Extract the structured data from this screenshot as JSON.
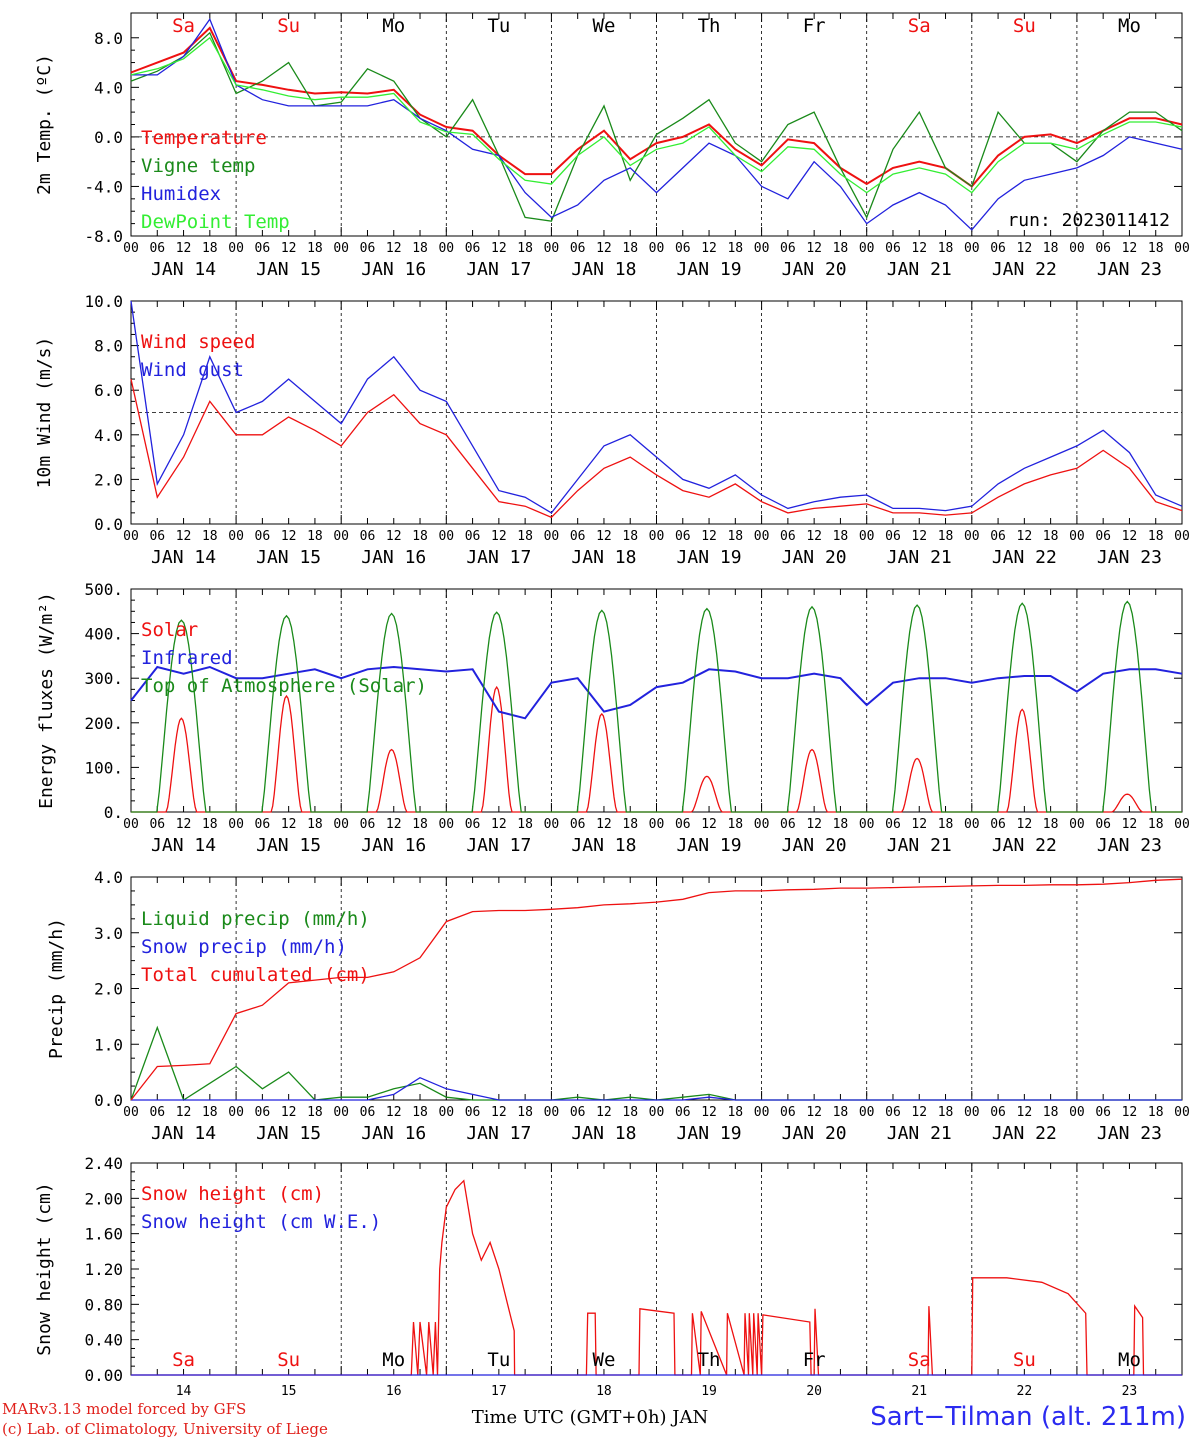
{
  "chart_data": [
    {
      "type": "line",
      "ylabel": "2m Temp. (ºC)",
      "ylim": [
        -8,
        10
      ],
      "yticks": [
        "-8.0",
        "-4.0",
        "0.0",
        "4.0",
        "8.0"
      ],
      "ytick_values": [
        -8,
        -4,
        0,
        4,
        8
      ],
      "ref_line": 0,
      "annotation": "run: 2023011412",
      "x": [
        0,
        6,
        12,
        18,
        24,
        30,
        36,
        42,
        48,
        54,
        60,
        66,
        72,
        78,
        84,
        90,
        96,
        102,
        108,
        114,
        120,
        126,
        132,
        138,
        144,
        150,
        156,
        162,
        168,
        174,
        180,
        186,
        192,
        198,
        204,
        210,
        216,
        222,
        228,
        234,
        240
      ],
      "series": [
        {
          "name": "Temperature",
          "color": "#ee1111",
          "values": [
            5.2,
            6.0,
            6.8,
            8.8,
            4.5,
            4.2,
            3.8,
            3.5,
            3.6,
            3.5,
            3.8,
            1.8,
            0.8,
            0.5,
            -1.5,
            -3.0,
            -3.0,
            -1.0,
            0.5,
            -1.8,
            -0.5,
            0.0,
            1.0,
            -1.0,
            -2.3,
            -0.2,
            -0.5,
            -2.5,
            -3.8,
            -2.5,
            -2.0,
            -2.5,
            -4.0,
            -1.5,
            0.0,
            0.2,
            -0.5,
            0.5,
            1.5,
            1.5,
            1.0
          ]
        },
        {
          "name": "Vigne temp",
          "color": "#1a8a1a",
          "values": [
            4.5,
            5.3,
            6.5,
            8.4,
            3.5,
            4.5,
            6.0,
            2.5,
            2.8,
            5.5,
            4.5,
            1.5,
            0.0,
            3.0,
            -1.5,
            -6.5,
            -6.8,
            -1.5,
            2.5,
            -3.5,
            0.2,
            1.5,
            3.0,
            -0.5,
            -2.0,
            1.0,
            2.0,
            -2.5,
            -6.5,
            -1.0,
            2.0,
            -2.5,
            -4.0,
            2.0,
            -0.5,
            -0.5,
            -2.0,
            0.5,
            2.0,
            2.0,
            0.5
          ]
        },
        {
          "name": "Humidex",
          "color": "#2222dd",
          "values": [
            5.0,
            5.0,
            6.5,
            9.5,
            4.2,
            3.0,
            2.5,
            2.5,
            2.5,
            2.5,
            3.0,
            1.5,
            0.5,
            -1.0,
            -1.5,
            -4.5,
            -6.5,
            -5.5,
            -3.5,
            -2.5,
            -4.5,
            -2.5,
            -0.5,
            -1.5,
            -4.0,
            -5.0,
            -2.0,
            -4.0,
            -7.0,
            -5.5,
            -4.5,
            -5.5,
            -7.5,
            -5.0,
            -3.5,
            -3.0,
            -2.5,
            -1.5,
            0.0,
            -0.5,
            -1.0
          ]
        },
        {
          "name": "DewPoint Temp",
          "color": "#33ee33",
          "values": [
            5.0,
            5.5,
            6.3,
            8.0,
            4.2,
            3.8,
            3.3,
            3.0,
            3.2,
            3.2,
            3.5,
            1.2,
            0.4,
            0.2,
            -1.8,
            -3.5,
            -3.8,
            -1.5,
            0.0,
            -2.3,
            -1.0,
            -0.5,
            0.8,
            -1.5,
            -2.8,
            -0.8,
            -1.0,
            -3.0,
            -4.5,
            -3.0,
            -2.5,
            -3.0,
            -4.5,
            -2.0,
            -0.5,
            -0.5,
            -1.0,
            0.2,
            1.2,
            1.2,
            0.8
          ]
        }
      ]
    },
    {
      "type": "line",
      "ylabel": "10m Wind (m/s)",
      "ylim": [
        0,
        10
      ],
      "yticks": [
        "0.0",
        "2.0",
        "4.0",
        "6.0",
        "8.0",
        "10.0"
      ],
      "ytick_values": [
        0,
        2,
        4,
        6,
        8,
        10
      ],
      "ref_line": 5,
      "x": [
        0,
        6,
        12,
        18,
        24,
        30,
        36,
        42,
        48,
        54,
        60,
        66,
        72,
        78,
        84,
        90,
        96,
        102,
        108,
        114,
        120,
        126,
        132,
        138,
        144,
        150,
        156,
        162,
        168,
        174,
        180,
        186,
        192,
        198,
        204,
        210,
        216,
        222,
        228,
        234,
        240
      ],
      "series": [
        {
          "name": "Wind speed",
          "color": "#ee1111",
          "values": [
            6.5,
            1.2,
            3.0,
            5.5,
            4.0,
            4.0,
            4.8,
            4.2,
            3.5,
            5.0,
            5.8,
            4.5,
            4.0,
            2.5,
            1.0,
            0.8,
            0.3,
            1.5,
            2.5,
            3.0,
            2.2,
            1.5,
            1.2,
            1.8,
            1.0,
            0.5,
            0.7,
            0.8,
            0.9,
            0.5,
            0.5,
            0.4,
            0.5,
            1.2,
            1.8,
            2.2,
            2.5,
            3.3,
            2.5,
            1.0,
            0.6
          ]
        },
        {
          "name": "Wind gust",
          "color": "#2222dd",
          "values": [
            10.0,
            1.8,
            4.0,
            7.5,
            5.0,
            5.5,
            6.5,
            5.5,
            4.5,
            6.5,
            7.5,
            6.0,
            5.5,
            3.5,
            1.5,
            1.2,
            0.5,
            2.0,
            3.5,
            4.0,
            3.0,
            2.0,
            1.6,
            2.2,
            1.3,
            0.7,
            1.0,
            1.2,
            1.3,
            0.7,
            0.7,
            0.6,
            0.8,
            1.8,
            2.5,
            3.0,
            3.5,
            4.2,
            3.2,
            1.3,
            0.8
          ]
        }
      ]
    },
    {
      "type": "line",
      "ylabel": "Energy fluxes (W/m²)",
      "ylim": [
        0,
        500
      ],
      "yticks": [
        "0.",
        "100.",
        "200.",
        "300.",
        "400.",
        "500."
      ],
      "ytick_values": [
        0,
        100,
        200,
        300,
        400,
        500
      ],
      "diurnal_peak_hour": 11.5,
      "toa_day_half_width_h": 5.6,
      "series": [
        {
          "name": "Solar",
          "color": "#ee1111",
          "daily_peaks": [
            210,
            260,
            140,
            280,
            220,
            80,
            140,
            120,
            230,
            40
          ]
        },
        {
          "name": "Infrared",
          "color": "#2222dd",
          "x": [
            0,
            6,
            12,
            18,
            24,
            30,
            36,
            42,
            48,
            54,
            60,
            66,
            72,
            78,
            84,
            90,
            96,
            102,
            108,
            114,
            120,
            126,
            132,
            138,
            144,
            150,
            156,
            162,
            168,
            174,
            180,
            186,
            192,
            198,
            204,
            210,
            216,
            222,
            228,
            234,
            240
          ],
          "values": [
            250,
            325,
            310,
            325,
            300,
            300,
            310,
            320,
            300,
            320,
            325,
            320,
            315,
            320,
            225,
            210,
            290,
            300,
            225,
            240,
            280,
            290,
            320,
            315,
            300,
            300,
            310,
            300,
            240,
            290,
            300,
            300,
            290,
            300,
            305,
            305,
            270,
            310,
            320,
            320,
            310
          ]
        },
        {
          "name": "Top of Atmosphere (Solar)",
          "color": "#1a8a1a",
          "daily_peaks": [
            430,
            440,
            445,
            448,
            452,
            456,
            460,
            464,
            468,
            472
          ]
        }
      ]
    },
    {
      "type": "line",
      "ylabel": "Precip (mm/h)",
      "ylim": [
        0,
        4
      ],
      "yticks": [
        "0.0",
        "1.0",
        "2.0",
        "3.0",
        "4.0"
      ],
      "ytick_values": [
        0,
        1,
        2,
        3,
        4
      ],
      "x": [
        0,
        6,
        12,
        18,
        24,
        30,
        36,
        42,
        48,
        54,
        60,
        66,
        72,
        78,
        84,
        90,
        96,
        102,
        108,
        114,
        120,
        126,
        132,
        138,
        144,
        150,
        156,
        162,
        168,
        174,
        180,
        186,
        192,
        198,
        204,
        210,
        216,
        222,
        228,
        234,
        240
      ],
      "series": [
        {
          "name": "Liquid precip (mm/h)",
          "color": "#1a8a1a",
          "values": [
            0.0,
            1.3,
            0.0,
            0.3,
            0.6,
            0.2,
            0.5,
            0.0,
            0.05,
            0.05,
            0.2,
            0.3,
            0.05,
            0.0,
            0.0,
            0.0,
            0.0,
            0.05,
            0.0,
            0.05,
            0.0,
            0.05,
            0.1,
            0.0,
            0.0,
            0.0,
            0.0,
            0.0,
            0.0,
            0.0,
            0.0,
            0.0,
            0.0,
            0.0,
            0.0,
            0.0,
            0.0,
            0.0,
            0.0,
            0.0,
            0.0
          ]
        },
        {
          "name": "Snow precip (mm/h)",
          "color": "#2222dd",
          "values": [
            0.0,
            0.0,
            0.0,
            0.0,
            0.0,
            0.0,
            0.0,
            0.0,
            0.0,
            0.0,
            0.1,
            0.4,
            0.2,
            0.1,
            0.0,
            0.0,
            0.0,
            0.0,
            0.0,
            0.0,
            0.0,
            0.0,
            0.05,
            0.0,
            0.0,
            0.0,
            0.0,
            0.0,
            0.0,
            0.0,
            0.0,
            0.0,
            0.0,
            0.0,
            0.0,
            0.0,
            0.0,
            0.0,
            0.0,
            0.0,
            0.0
          ]
        },
        {
          "name": "Total cumulated (cm)",
          "color": "#ee1111",
          "values": [
            0.0,
            0.6,
            0.62,
            0.65,
            1.55,
            1.7,
            2.1,
            2.15,
            2.2,
            2.2,
            2.3,
            2.55,
            3.2,
            3.38,
            3.4,
            3.4,
            3.42,
            3.45,
            3.5,
            3.52,
            3.55,
            3.6,
            3.72,
            3.75,
            3.75,
            3.77,
            3.78,
            3.8,
            3.8,
            3.81,
            3.82,
            3.83,
            3.84,
            3.85,
            3.85,
            3.86,
            3.86,
            3.87,
            3.9,
            3.94,
            3.96
          ]
        }
      ]
    },
    {
      "type": "line",
      "ylabel": "Snow height (cm)",
      "ylim": [
        0,
        2.4
      ],
      "yticks": [
        "0.00",
        "0.40",
        "0.80",
        "1.20",
        "1.60",
        "2.00",
        "2.40"
      ],
      "ytick_values": [
        0,
        0.4,
        0.8,
        1.2,
        1.6,
        2.0,
        2.4
      ],
      "series": [
        {
          "name": "Snow height (cm)",
          "color": "#ee1111",
          "x": [
            0,
            64,
            64.5,
            65.5,
            66,
            67.5,
            68,
            69,
            69.5,
            70,
            70.5,
            71,
            72,
            74,
            76,
            78,
            80,
            82,
            84,
            86,
            87.5,
            87.6,
            104,
            104.3,
            106,
            106.2,
            116,
            116.2,
            124,
            124.2,
            128,
            128.2,
            130,
            130.2,
            136,
            136.2,
            140,
            140.2,
            141,
            141.2,
            142,
            142.2,
            143,
            143.2,
            144,
            144.3,
            155,
            155.3,
            156,
            156.2,
            157,
            157.2,
            182,
            182.2,
            183,
            183.2,
            192,
            192.2,
            200,
            208,
            214,
            218,
            218.3,
            229,
            229.2,
            231,
            231.2,
            240
          ],
          "values": [
            0,
            0,
            0.6,
            0,
            0.6,
            0,
            0.6,
            0,
            0.6,
            0,
            1.2,
            1.5,
            1.9,
            2.1,
            2.2,
            1.6,
            1.3,
            1.5,
            1.2,
            0.8,
            0.5,
            0,
            0,
            0.7,
            0.7,
            0,
            0,
            0.75,
            0.7,
            0,
            0,
            0.7,
            0,
            0.72,
            0,
            0.7,
            0,
            0.7,
            0,
            0.7,
            0,
            0.7,
            0,
            0.7,
            0,
            0.68,
            0.6,
            0,
            0,
            0.75,
            0,
            0,
            0,
            0.78,
            0,
            0,
            0,
            1.1,
            1.1,
            1.05,
            0.92,
            0.7,
            0,
            0,
            0.78,
            0.65,
            0,
            0
          ]
        },
        {
          "name": "Snow height (cm W.E.)",
          "color": "#2222dd",
          "x": [
            0,
            240
          ],
          "values": [
            0,
            0
          ]
        }
      ]
    }
  ],
  "time_axis": {
    "hour_ticks": [
      "00",
      "06",
      "12",
      "18"
    ],
    "end_tick": "00",
    "day_labels": [
      "JAN 14",
      "JAN 15",
      "JAN 16",
      "JAN 17",
      "JAN 18",
      "JAN 19",
      "JAN 20",
      "JAN 21",
      "JAN 22",
      "JAN 23"
    ],
    "weekdays": [
      "Sa",
      "Su",
      "Mo",
      "Tu",
      "We",
      "Th",
      "Fr",
      "Sa",
      "Su",
      "Mo"
    ],
    "weekday_colors": [
      "#ee1111",
      "#ee1111",
      "#000000",
      "#000000",
      "#000000",
      "#000000",
      "#000000",
      "#ee1111",
      "#ee1111",
      "#000000"
    ],
    "bottom_day_numbers": [
      "14",
      "15",
      "16",
      "17",
      "18",
      "19",
      "20",
      "21",
      "22",
      "23"
    ],
    "xlabel": "Time UTC (GMT+0h) JAN"
  },
  "footer": {
    "credit_line1": "MARv3.13 model forced by GFS",
    "credit_line2": "(c) Lab. of Climatology, University of Liege",
    "station": "Sart−Tilman (alt. 211m)"
  }
}
